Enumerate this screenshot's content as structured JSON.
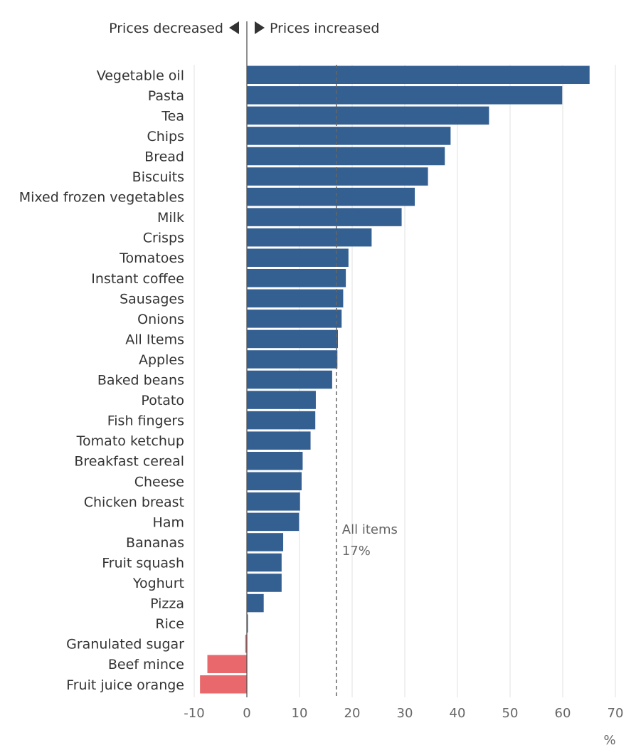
{
  "chart_data": {
    "type": "bar",
    "orientation": "horizontal",
    "categories": [
      "Vegetable oil",
      "Pasta",
      "Tea",
      "Chips",
      "Bread",
      "Biscuits",
      "Mixed frozen vegetables",
      "Milk",
      "Crisps",
      "Tomatoes",
      "Instant coffee",
      "Sausages",
      "Onions",
      "All Items",
      "Apples",
      "Baked beans",
      "Potato",
      "Fish fingers",
      "Tomato ketchup",
      "Breakfast cereal",
      "Cheese",
      "Chicken breast",
      "Ham",
      "Bananas",
      "Fruit squash",
      "Yoghurt",
      "Pizza",
      "Rice",
      "Granulated sugar",
      "Beef mince",
      "Fruit juice orange"
    ],
    "values": [
      65.1,
      59.9,
      46.0,
      38.7,
      37.6,
      34.4,
      31.9,
      29.4,
      23.7,
      19.3,
      18.8,
      18.3,
      18.0,
      17.3,
      17.2,
      16.2,
      13.1,
      13.0,
      12.1,
      10.6,
      10.4,
      10.1,
      9.9,
      6.9,
      6.6,
      6.6,
      3.2,
      0.2,
      -0.3,
      -7.5,
      -8.9
    ],
    "positive_color": "#335f91",
    "negative_color": "#e8686b",
    "xlim": [
      -10,
      70
    ],
    "xticks": [
      -10,
      0,
      10,
      20,
      30,
      40,
      50,
      60,
      70
    ],
    "xlabel": "%",
    "grid": true,
    "header_left": "Prices decreased",
    "header_right": "Prices increased",
    "reference_line": {
      "value": 17,
      "label_line1": "All items",
      "label_line2": "17%"
    }
  }
}
